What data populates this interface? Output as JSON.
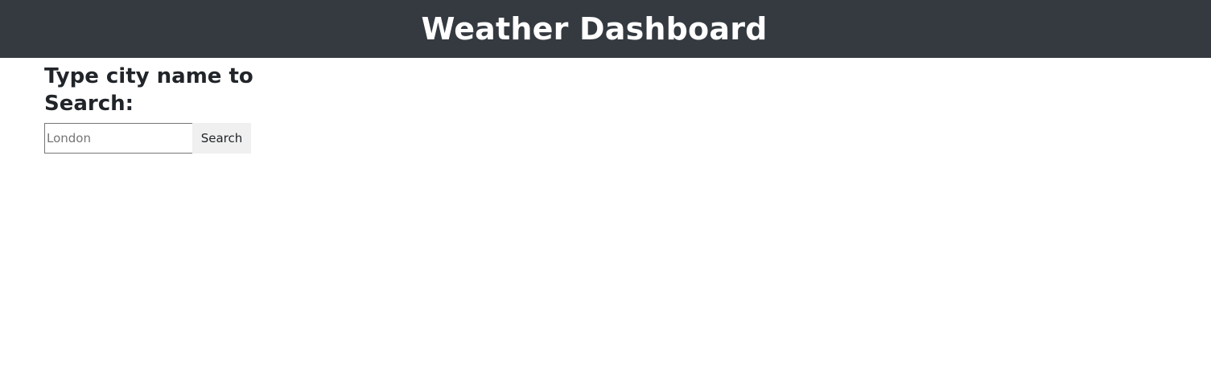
{
  "header": {
    "title": "Weather Dashboard",
    "background_color": "#343a40",
    "text_color": "#ffffff"
  },
  "search": {
    "heading": "Type city name to Search:",
    "placeholder": "London",
    "value": "",
    "button_label": "Search"
  }
}
